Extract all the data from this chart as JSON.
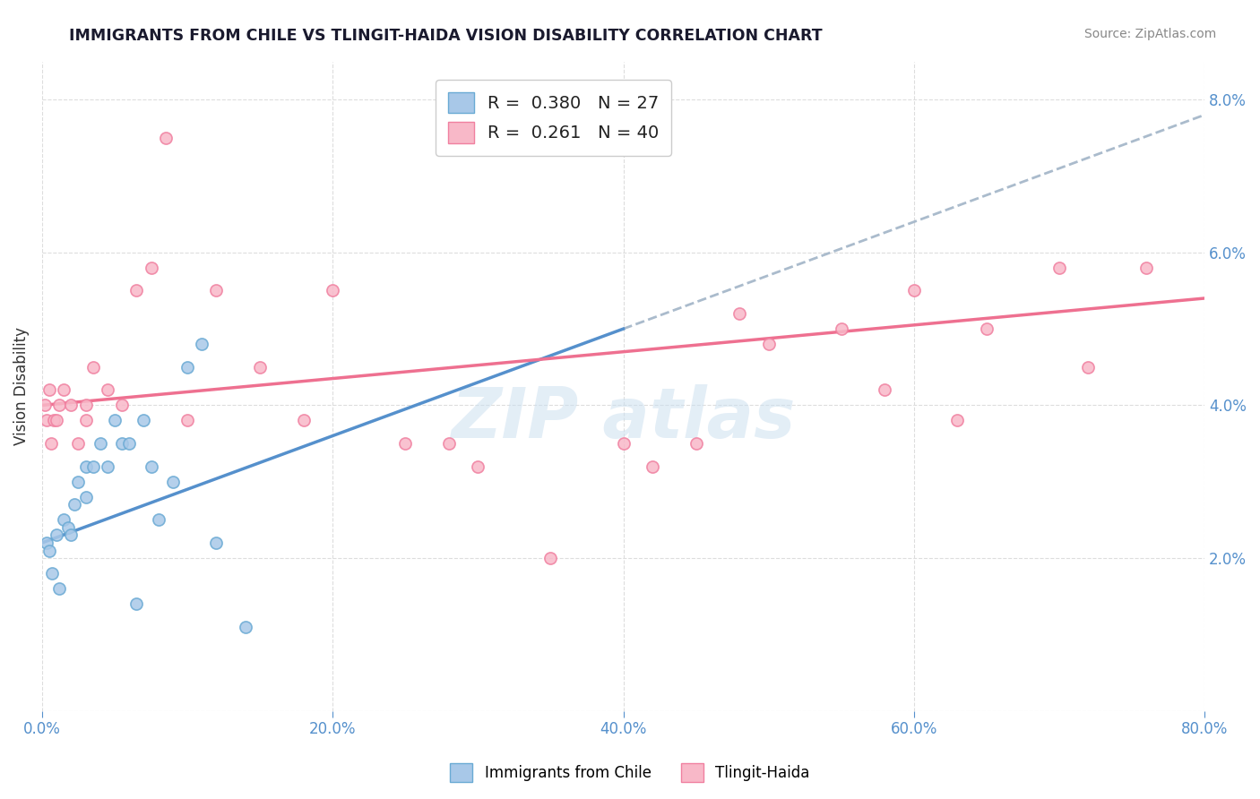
{
  "title": "IMMIGRANTS FROM CHILE VS TLINGIT-HAIDA VISION DISABILITY CORRELATION CHART",
  "source": "Source: ZipAtlas.com",
  "xlabel_blue": "Immigrants from Chile",
  "xlabel_pink": "Tlingit-Haida",
  "ylabel": "Vision Disability",
  "R_blue": 0.38,
  "N_blue": 27,
  "R_pink": 0.261,
  "N_pink": 40,
  "blue_fill": "#a8c8e8",
  "pink_fill": "#f8b8c8",
  "blue_edge": "#6aaad4",
  "pink_edge": "#f080a0",
  "blue_line": "#5590cc",
  "pink_line": "#ee7090",
  "dash_color": "#aabbcc",
  "blue_scatter_x": [
    0.3,
    0.5,
    0.7,
    1.0,
    1.2,
    1.5,
    1.8,
    2.0,
    2.2,
    2.5,
    3.0,
    3.0,
    3.5,
    4.0,
    4.5,
    5.0,
    5.5,
    6.0,
    6.5,
    7.0,
    7.5,
    8.0,
    9.0,
    10.0,
    11.0,
    12.0,
    14.0
  ],
  "blue_scatter_y": [
    2.2,
    2.1,
    1.8,
    2.3,
    1.6,
    2.5,
    2.4,
    2.3,
    2.7,
    3.0,
    2.8,
    3.2,
    3.2,
    3.5,
    3.2,
    3.8,
    3.5,
    3.5,
    1.4,
    3.8,
    3.2,
    2.5,
    3.0,
    4.5,
    4.8,
    2.2,
    1.1
  ],
  "pink_scatter_x": [
    0.2,
    0.3,
    0.5,
    0.6,
    0.8,
    1.0,
    1.2,
    1.5,
    2.0,
    2.5,
    3.0,
    3.0,
    3.5,
    4.5,
    5.5,
    6.5,
    7.5,
    8.5,
    10.0,
    12.0,
    15.0,
    18.0,
    20.0,
    25.0,
    28.0,
    30.0,
    35.0,
    40.0,
    42.0,
    45.0,
    48.0,
    50.0,
    55.0,
    58.0,
    60.0,
    63.0,
    65.0,
    70.0,
    72.0,
    76.0
  ],
  "pink_scatter_y": [
    4.0,
    3.8,
    4.2,
    3.5,
    3.8,
    3.8,
    4.0,
    4.2,
    4.0,
    3.5,
    4.0,
    3.8,
    4.5,
    4.2,
    4.0,
    5.5,
    5.8,
    7.5,
    3.8,
    5.5,
    4.5,
    3.8,
    5.5,
    3.5,
    3.5,
    3.2,
    2.0,
    3.5,
    3.2,
    3.5,
    5.2,
    4.8,
    5.0,
    4.2,
    5.5,
    3.8,
    5.0,
    5.8,
    4.5,
    5.8
  ],
  "blue_line_x0": 0.0,
  "blue_line_y0": 2.2,
  "blue_line_x1": 40.0,
  "blue_line_y1": 5.0,
  "pink_line_x0": 0.0,
  "pink_line_y0": 4.0,
  "pink_line_x1": 80.0,
  "pink_line_y1": 5.4,
  "dash_x0": 40.0,
  "dash_x1": 80.0,
  "xlim": [
    0,
    80
  ],
  "ylim": [
    0,
    8.5
  ],
  "background_color": "#ffffff"
}
